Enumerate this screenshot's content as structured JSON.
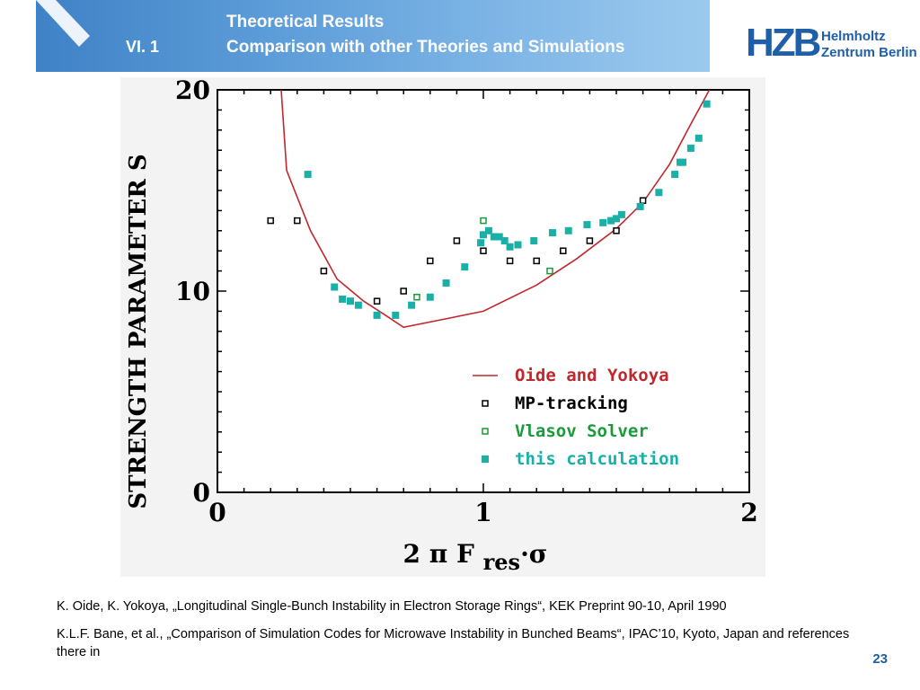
{
  "header": {
    "section": "VI.  1",
    "title_line1": "Theoretical Results",
    "title_line2": "Comparison with other Theories and Simulations"
  },
  "logo": {
    "mark": "HZB",
    "line1": "Helmholtz",
    "line2": "Zentrum Berlin"
  },
  "chart_data": {
    "type": "scatter",
    "ylabel": "STRENGTH PARAMETER S",
    "xlabel": "2 π F",
    "xlabel_sub": "res",
    "xlabel_suffix": "·σ",
    "xlim": [
      0,
      2
    ],
    "ylim": [
      0,
      20
    ],
    "x_ticks": [
      "0",
      "1",
      "2"
    ],
    "y_ticks": [
      "0",
      "10",
      "20"
    ],
    "legend_position": "lower-right",
    "series": [
      {
        "name": "Oide and Yokoya",
        "kind": "line",
        "color": "#c0282d",
        "points": [
          [
            0.24,
            20.5
          ],
          [
            0.26,
            16.0
          ],
          [
            0.35,
            13.0
          ],
          [
            0.45,
            10.6
          ],
          [
            0.55,
            9.5
          ],
          [
            0.62,
            8.9
          ],
          [
            0.7,
            8.2
          ],
          [
            0.85,
            8.6
          ],
          [
            1.0,
            9.0
          ],
          [
            1.2,
            10.3
          ],
          [
            1.35,
            11.6
          ],
          [
            1.5,
            13.1
          ],
          [
            1.6,
            14.4
          ],
          [
            1.7,
            16.3
          ],
          [
            1.78,
            18.3
          ],
          [
            1.85,
            20.3
          ]
        ]
      },
      {
        "name": "MP-tracking",
        "kind": "open-square",
        "color": "#000000",
        "points": [
          [
            0.2,
            13.5
          ],
          [
            0.3,
            13.5
          ],
          [
            0.4,
            11.0
          ],
          [
            0.5,
            9.5
          ],
          [
            0.6,
            9.5
          ],
          [
            0.7,
            10.0
          ],
          [
            0.8,
            11.5
          ],
          [
            0.9,
            12.5
          ],
          [
            1.0,
            12.0
          ],
          [
            1.1,
            11.5
          ],
          [
            1.2,
            11.5
          ],
          [
            1.3,
            12.0
          ],
          [
            1.4,
            12.5
          ],
          [
            1.5,
            13.0
          ],
          [
            1.6,
            14.5
          ]
        ]
      },
      {
        "name": "Vlasov Solver",
        "kind": "open-square",
        "color": "#1a9a3a",
        "points": [
          [
            0.75,
            9.7
          ],
          [
            1.0,
            13.5
          ],
          [
            1.25,
            11.0
          ]
        ]
      },
      {
        "name": "this calculation",
        "kind": "filled-square",
        "color": "#1ab0a8",
        "points": [
          [
            0.34,
            15.8
          ],
          [
            0.44,
            10.2
          ],
          [
            0.47,
            9.6
          ],
          [
            0.5,
            9.5
          ],
          [
            0.53,
            9.3
          ],
          [
            0.6,
            8.8
          ],
          [
            0.67,
            8.8
          ],
          [
            0.73,
            9.3
          ],
          [
            0.8,
            9.7
          ],
          [
            0.86,
            10.4
          ],
          [
            0.93,
            11.2
          ],
          [
            0.99,
            12.4
          ],
          [
            1.0,
            12.8
          ],
          [
            1.02,
            13.0
          ],
          [
            1.04,
            12.7
          ],
          [
            1.06,
            12.7
          ],
          [
            1.08,
            12.5
          ],
          [
            1.1,
            12.2
          ],
          [
            1.13,
            12.3
          ],
          [
            1.19,
            12.5
          ],
          [
            1.26,
            12.9
          ],
          [
            1.32,
            13.0
          ],
          [
            1.39,
            13.3
          ],
          [
            1.45,
            13.4
          ],
          [
            1.48,
            13.5
          ],
          [
            1.5,
            13.6
          ],
          [
            1.52,
            13.8
          ],
          [
            1.59,
            14.2
          ],
          [
            1.66,
            14.9
          ],
          [
            1.72,
            15.8
          ],
          [
            1.74,
            16.4
          ],
          [
            1.75,
            16.4
          ],
          [
            1.78,
            17.1
          ],
          [
            1.81,
            17.6
          ],
          [
            1.84,
            19.3
          ]
        ]
      }
    ]
  },
  "references": [
    "K. Oide, K. Yokoya, „Longitudinal Single-Bunch Instability in Electron Storage Rings“, KEK Preprint 90-10, April 1990",
    "K.L.F. Bane, et al., „Comparison of Simulation Codes for Microwave Instability in Bunched Beams“, IPAC’10, Kyoto, Japan and references there in"
  ],
  "page_number": "23"
}
